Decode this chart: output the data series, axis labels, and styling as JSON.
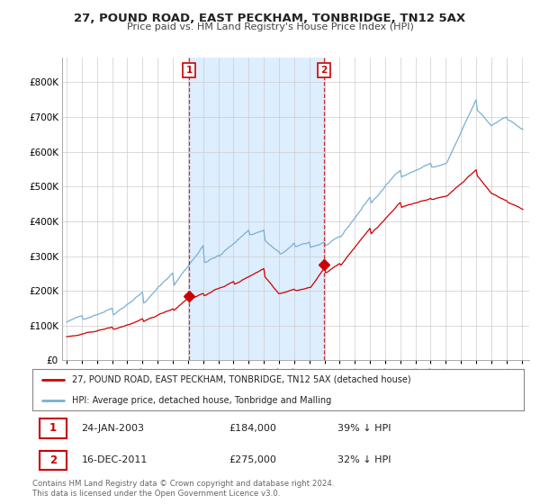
{
  "title": "27, POUND ROAD, EAST PECKHAM, TONBRIDGE, TN12 5AX",
  "subtitle": "Price paid vs. HM Land Registry's House Price Index (HPI)",
  "legend_line1": "27, POUND ROAD, EAST PECKHAM, TONBRIDGE, TN12 5AX (detached house)",
  "legend_line2": "HPI: Average price, detached house, Tonbridge and Malling",
  "sale1_date": "24-JAN-2003",
  "sale1_price": "£184,000",
  "sale1_hpi": "39% ↓ HPI",
  "sale2_date": "16-DEC-2011",
  "sale2_price": "£275,000",
  "sale2_hpi": "32% ↓ HPI",
  "footnote": "Contains HM Land Registry data © Crown copyright and database right 2024.\nThis data is licensed under the Open Government Licence v3.0.",
  "sale1_color": "#cc0000",
  "hpi_color": "#7aafd4",
  "property_color": "#cc0000",
  "background_color": "#ffffff",
  "plot_bg_color": "#ffffff",
  "shade_color": "#ddeeff",
  "ylim_low": 0,
  "ylim_high": 870000,
  "yticks": [
    0,
    100000,
    200000,
    300000,
    400000,
    500000,
    600000,
    700000,
    800000
  ],
  "ytick_labels": [
    "£0",
    "£100K",
    "£200K",
    "£300K",
    "£400K",
    "£500K",
    "£600K",
    "£700K",
    "£800K"
  ],
  "sale1_x": 2003.07,
  "sale1_y": 184000,
  "sale2_x": 2011.96,
  "sale2_y": 275000,
  "xlim_low": 1994.7,
  "xlim_high": 2025.5
}
